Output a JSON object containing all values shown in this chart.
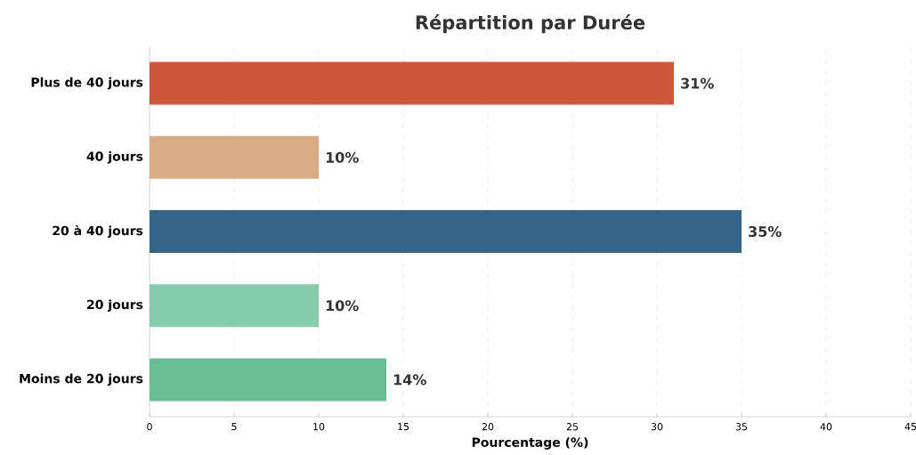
{
  "chart_data": {
    "type": "bar",
    "orientation": "horizontal",
    "title": "Répartition par Durée",
    "xlabel": "Pourcentage (%)",
    "categories": [
      "Plus de 40 jours",
      "40 jours",
      "20 à 40 jours",
      "20 jours",
      "Moins de 20 jours"
    ],
    "values": [
      31,
      10,
      35,
      10,
      14
    ],
    "value_labels": [
      "31%",
      "10%",
      "35%",
      "10%",
      "14%"
    ],
    "colors": [
      "#cd573b",
      "#d9ab84",
      "#336686",
      "#85ccaa",
      "#66be93"
    ],
    "xlim": [
      0,
      45
    ],
    "xticks": [
      0,
      5,
      10,
      15,
      20,
      25,
      30,
      35,
      40,
      45
    ],
    "grid": "x"
  }
}
